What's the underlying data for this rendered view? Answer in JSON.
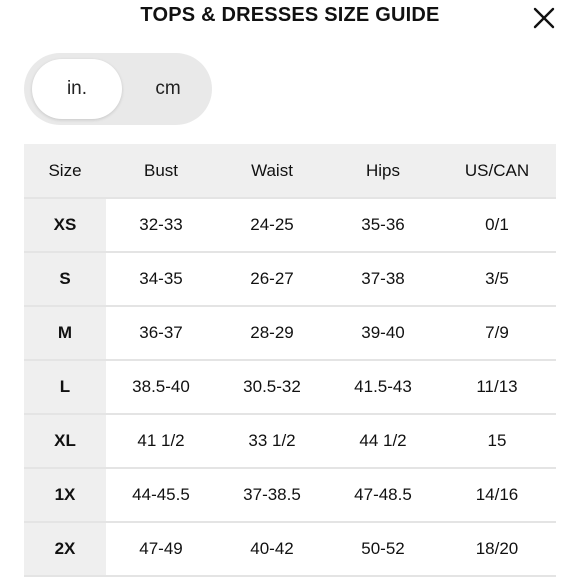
{
  "header": {
    "title": "TOPS & DRESSES SIZE GUIDE",
    "close_icon": "close-icon"
  },
  "units": {
    "options": [
      "in.",
      "cm"
    ],
    "selected": "in."
  },
  "table": {
    "headers": [
      "Size",
      "Bust",
      "Waist",
      "Hips",
      "US/CAN"
    ],
    "rows": [
      [
        "XS",
        "32-33",
        "24-25",
        "35-36",
        "0/1"
      ],
      [
        "S",
        "34-35",
        "26-27",
        "37-38",
        "3/5"
      ],
      [
        "M",
        "36-37",
        "28-29",
        "39-40",
        "7/9"
      ],
      [
        "L",
        "38.5-40",
        "30.5-32",
        "41.5-43",
        "11/13"
      ],
      [
        "XL",
        "41 1/2",
        "33 1/2",
        "44 1/2",
        "15"
      ],
      [
        "1X",
        "44-45.5",
        "37-38.5",
        "47-48.5",
        "14/16"
      ],
      [
        "2X",
        "47-49",
        "40-42",
        "50-52",
        "18/20"
      ]
    ]
  }
}
